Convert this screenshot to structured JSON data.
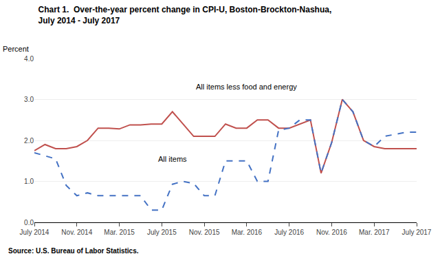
{
  "chart_data": {
    "type": "line",
    "title": "Chart 1.  Over-the-year percent change in CPI-U, Boston-Brockton-Nashua,",
    "subtitle": "July 2014 - July 2017",
    "y_label": "Percent",
    "source": "Source: U.S. Bureau of Labor Statistics.",
    "categories": [
      "July 2014",
      null,
      null,
      null,
      "Nov. 2014",
      null,
      null,
      null,
      "Mar. 2015",
      null,
      null,
      null,
      "July 2015",
      null,
      null,
      null,
      "Nov. 2015",
      null,
      null,
      null,
      "Mar. 2016",
      null,
      null,
      null,
      "July 2016",
      null,
      null,
      null,
      "Nov. 2016",
      null,
      null,
      null,
      "Mar. 2017",
      null,
      null,
      null,
      "July 2017"
    ],
    "series": [
      {
        "color": "#c0504d",
        "line_style": "solid",
        "values": [
          1.75,
          1.9,
          1.8,
          1.8,
          1.85,
          2.0,
          2.3,
          2.3,
          2.28,
          2.38,
          2.38,
          2.4,
          2.4,
          2.7,
          2.4,
          2.1,
          2.1,
          2.1,
          2.4,
          2.3,
          2.3,
          2.5,
          2.5,
          2.3,
          2.3,
          2.4,
          2.5,
          1.2,
          1.95,
          3.0,
          2.7,
          2.0,
          1.85,
          1.8,
          1.8,
          1.8,
          1.8
        ]
      },
      {
        "color": "#4472c4",
        "line_style": "dashed",
        "values": [
          1.7,
          1.62,
          1.55,
          0.9,
          0.65,
          0.72,
          0.65,
          0.65,
          0.65,
          0.65,
          0.65,
          0.3,
          0.3,
          0.93,
          1.0,
          0.95,
          0.65,
          0.65,
          1.5,
          1.5,
          1.5,
          1.0,
          1.0,
          2.25,
          2.3,
          2.5,
          2.5,
          1.2,
          1.95,
          3.0,
          2.7,
          2.0,
          1.85,
          2.1,
          2.15,
          2.2,
          2.2
        ]
      }
    ],
    "annotations": [
      {
        "text": "All items less food and energy",
        "x": 20,
        "y": 3.18
      },
      {
        "text": "All items",
        "x": 13,
        "y": 1.42
      }
    ],
    "ylim": [
      0.0,
      4.0
    ],
    "yticks": [
      {
        "value": 0.0,
        "label": "0.0"
      },
      {
        "value": 1.0,
        "label": "1.0"
      },
      {
        "value": 2.0,
        "label": "2.0"
      },
      {
        "value": 3.0,
        "label": "3.0"
      },
      {
        "value": 4.0,
        "label": "4.0"
      }
    ],
    "grid": true
  }
}
